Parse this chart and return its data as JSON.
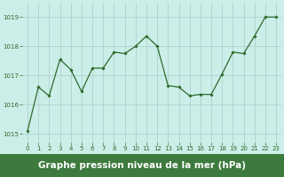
{
  "x": [
    0,
    1,
    2,
    3,
    4,
    5,
    6,
    7,
    8,
    9,
    10,
    11,
    12,
    13,
    14,
    15,
    16,
    17,
    18,
    19,
    20,
    21,
    22,
    23
  ],
  "y": [
    1015.1,
    1016.6,
    1016.3,
    1017.55,
    1017.2,
    1016.45,
    1017.25,
    1017.25,
    1017.8,
    1017.75,
    1018.0,
    1018.35,
    1018.0,
    1016.65,
    1016.6,
    1016.3,
    1016.35,
    1016.35,
    1017.05,
    1017.8,
    1017.75,
    1018.35,
    1019.0,
    1019.0
  ],
  "line_color": "#2d6a2d",
  "marker": "D",
  "marker_size": 1.8,
  "line_width": 0.9,
  "bg_color": "#cceee8",
  "grid_color": "#aacccc",
  "xlabel": "Graphe pression niveau de la mer (hPa)",
  "xlabel_fontsize": 7.5,
  "xlabel_bg": "#3d7a3d",
  "yticks": [
    1015,
    1016,
    1017,
    1018,
    1019
  ],
  "ylim": [
    1014.7,
    1019.5
  ],
  "xlim": [
    -0.5,
    23.5
  ],
  "xticks": [
    0,
    1,
    2,
    3,
    4,
    5,
    6,
    7,
    8,
    9,
    10,
    11,
    12,
    13,
    14,
    15,
    16,
    17,
    18,
    19,
    20,
    21,
    22,
    23
  ],
  "tick_labelsize": 5.0,
  "fig_width": 3.2,
  "fig_height": 2.0,
  "dpi": 100
}
